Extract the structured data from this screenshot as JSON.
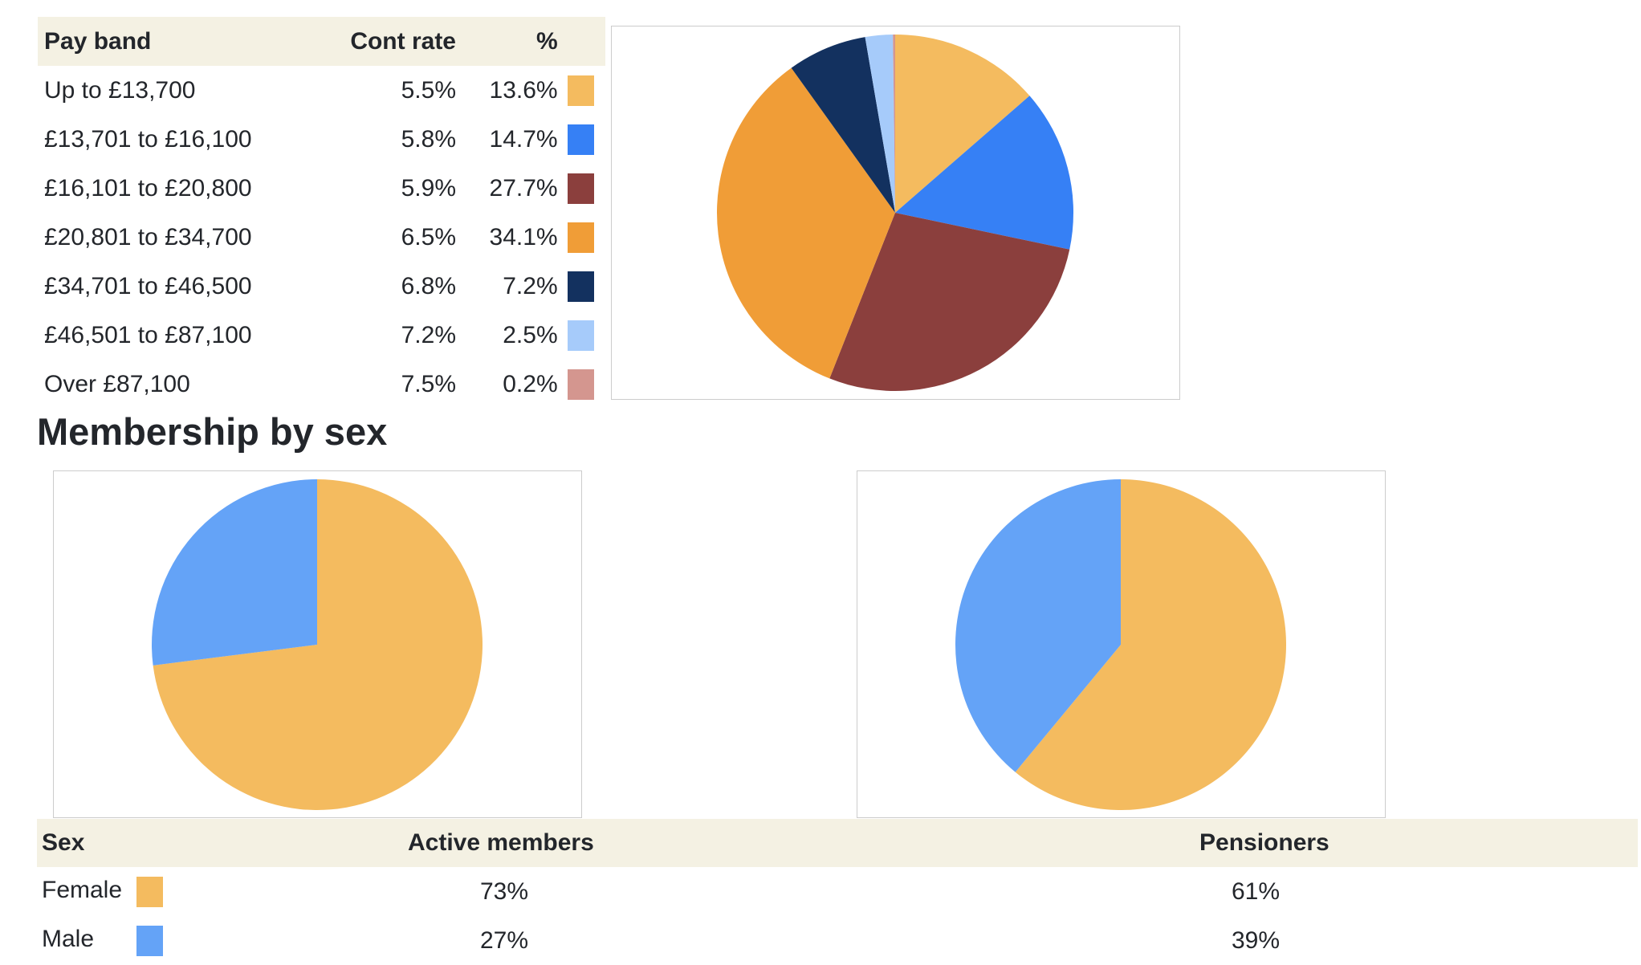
{
  "pay_table": {
    "headers": [
      "Pay band",
      "Cont rate",
      "%"
    ],
    "rows": [
      {
        "band": "Up to £13,700",
        "rate": "5.5%",
        "pct": "13.6%",
        "color": "#f4bb5f"
      },
      {
        "band": "£13,701 to £16,100",
        "rate": "5.8%",
        "pct": "14.7%",
        "color": "#3680f5"
      },
      {
        "band": "£16,101 to £20,800",
        "rate": "5.9%",
        "pct": "27.7%",
        "color": "#8b3f3d"
      },
      {
        "band": "£20,801 to £34,700",
        "rate": "6.5%",
        "pct": "34.1%",
        "color": "#f09d37"
      },
      {
        "band": "£34,701 to £46,500",
        "rate": "6.8%",
        "pct": "7.2%",
        "color": "#13315f"
      },
      {
        "band": "£46,501 to £87,100",
        "rate": "7.2%",
        "pct": "2.5%",
        "color": "#a6cbfa"
      },
      {
        "band": "Over £87,100",
        "rate": "7.5%",
        "pct": "0.2%",
        "color": "#d4968f"
      }
    ]
  },
  "heading": "Membership by sex",
  "sex_table": {
    "headers": [
      "Sex",
      "Active members",
      "Pensioners"
    ],
    "rows": [
      {
        "sex": "Female",
        "active": "73%",
        "pensioners": "61%",
        "color": "#f4bb5f"
      },
      {
        "sex": "Male",
        "active": "27%",
        "pensioners": "39%",
        "color": "#64a3f7"
      }
    ]
  },
  "chart_data": [
    {
      "type": "pie",
      "categories": [
        "Up to £13,700",
        "£13,701 to £16,100",
        "£16,101 to £20,800",
        "£20,801 to £34,700",
        "£34,701 to £46,500",
        "£46,501 to £87,100",
        "Over £87,100"
      ],
      "values": [
        13.6,
        14.7,
        27.7,
        34.1,
        7.2,
        2.5,
        0.2
      ],
      "colors": [
        "#f4bb5f",
        "#3680f5",
        "#8b3f3d",
        "#f09d37",
        "#13315f",
        "#a6cbfa",
        "#d4968f"
      ]
    },
    {
      "type": "pie",
      "categories": [
        "Female",
        "Male"
      ],
      "values": [
        73,
        27
      ],
      "colors": [
        "#f4bb5f",
        "#64a3f7"
      ]
    },
    {
      "type": "pie",
      "categories": [
        "Female",
        "Male"
      ],
      "values": [
        61,
        39
      ],
      "colors": [
        "#f4bb5f",
        "#64a3f7"
      ]
    }
  ]
}
